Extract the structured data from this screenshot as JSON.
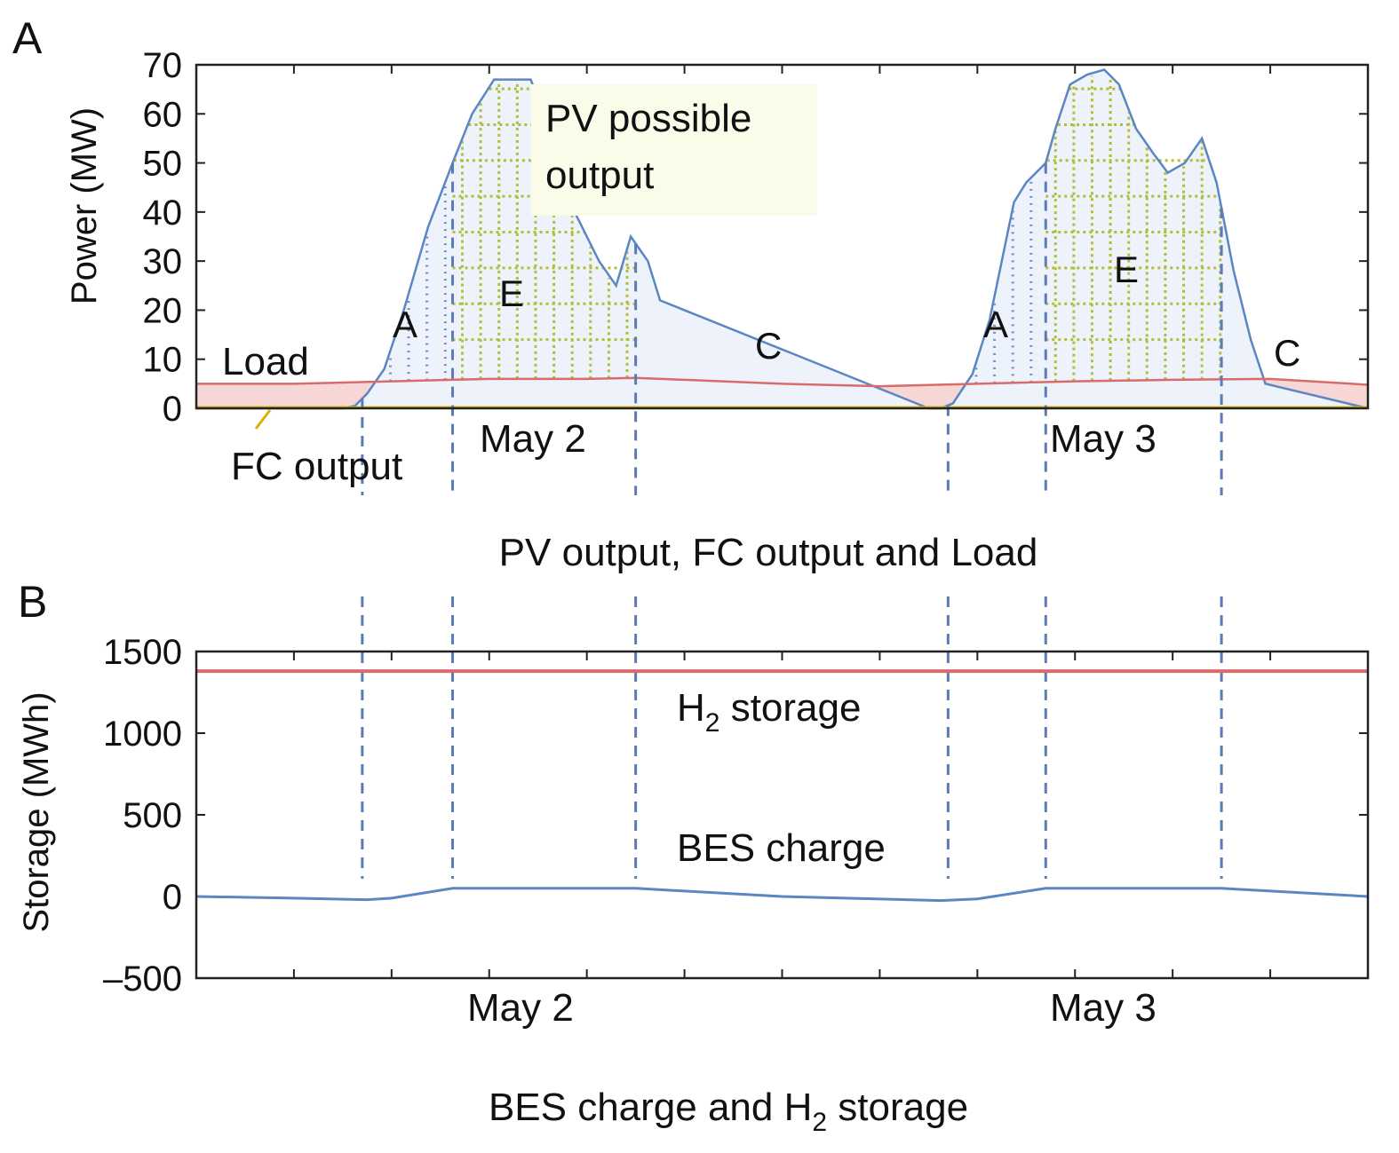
{
  "chart_data": [
    {
      "panel": "A",
      "type": "area",
      "caption": "PV output, FC output and Load",
      "ylabel": "Power (MW)",
      "ylim": [
        0,
        70
      ],
      "yticks": [
        0,
        10,
        20,
        30,
        40,
        50,
        60,
        70
      ],
      "xlim": [
        0,
        48
      ],
      "x_unit": "hours (May 1 12:00 to May 3 12:00)",
      "date_labels": [
        {
          "x": 14,
          "text": "May 2"
        },
        {
          "x": 38,
          "text": "May 3"
        }
      ],
      "series": [
        {
          "name": "PV possible output",
          "color": "#5b86c4",
          "x": [
            0,
            6.0,
            6.5,
            7.0,
            7.7,
            8.5,
            9.5,
            10.5,
            11.3,
            12.2,
            12.5,
            13.0,
            13.7,
            14.5,
            15.0,
            15.3,
            15.8,
            16.5,
            17.2,
            17.8,
            18.5,
            19.0,
            30.0,
            30.5,
            31.0,
            31.8,
            32.5,
            33.0,
            33.5,
            34.0,
            34.8,
            35.2,
            35.8,
            36.5,
            37.2,
            37.8,
            38.5,
            39.2,
            39.8,
            40.5,
            41.2,
            41.8,
            42.5,
            43.2,
            43.8,
            48
          ],
          "y": [
            0,
            0,
            0.5,
            3,
            8,
            20,
            37,
            50,
            60,
            67,
            67,
            67,
            67,
            57,
            48,
            42,
            37,
            30,
            25,
            35,
            30,
            22,
            0,
            0,
            1,
            7,
            18,
            30,
            42,
            46,
            50,
            57,
            66,
            68,
            69,
            66,
            57,
            52,
            48,
            50,
            55,
            46,
            28,
            14,
            5,
            0
          ]
        },
        {
          "name": "Load",
          "color": "#d96b6b",
          "x": [
            0,
            4,
            8,
            12,
            16,
            18,
            20,
            24,
            28,
            32,
            36,
            40,
            44,
            48
          ],
          "y": [
            5,
            5,
            5.5,
            6,
            6,
            6.2,
            5.8,
            5,
            4.5,
            5,
            5.5,
            5.8,
            6,
            4.8
          ]
        },
        {
          "name": "FC output",
          "color": "#d8b400",
          "x": [
            0,
            48
          ],
          "y": [
            0,
            0
          ]
        }
      ],
      "annotations": [
        "Load",
        "FC output",
        "PV possible output",
        "A",
        "E",
        "C",
        "A",
        "E",
        "C"
      ],
      "vertical_dashed_x": [
        6.8,
        10.5,
        18.0,
        30.8,
        34.8,
        42.0
      ]
    },
    {
      "panel": "B",
      "type": "line",
      "caption": "BES charge and H2 storage",
      "ylabel": "Storage (MWh)",
      "ylim": [
        -500,
        1500
      ],
      "yticks": [
        -500,
        0,
        500,
        1000,
        1500
      ],
      "xlim": [
        0,
        48
      ],
      "date_labels": [
        {
          "x": 14,
          "text": "May 2"
        },
        {
          "x": 38,
          "text": "May 3"
        }
      ],
      "series": [
        {
          "name": "H2 storage",
          "color": "#d96b6b",
          "x": [
            0,
            48
          ],
          "y": [
            1380,
            1380
          ]
        },
        {
          "name": "BES charge",
          "color": "#5b86c4",
          "x": [
            0,
            4,
            7,
            8,
            10.5,
            18,
            24,
            30.5,
            32,
            34.8,
            42,
            48
          ],
          "y": [
            0,
            -10,
            -20,
            -10,
            50,
            50,
            0,
            -25,
            -15,
            50,
            50,
            0
          ]
        }
      ],
      "annotations": [
        "H2 storage",
        "BES charge"
      ],
      "vertical_dashed_x": [
        6.8,
        10.5,
        18.0,
        30.8,
        34.8,
        42.0
      ]
    }
  ],
  "text": {
    "panelA_letter": "A",
    "panelB_letter": "B",
    "load_label": "Load",
    "fc_label": "FC output",
    "pv_label_line1": "PV possible",
    "pv_label_line2": "output",
    "regionA": "A",
    "regionE": "E",
    "regionC": "C",
    "h2_label_main": "H",
    "h2_label_sub": "2",
    "h2_label_rest": " storage",
    "bes_label": "BES charge",
    "captionA": "PV output, FC output and Load",
    "captionB_pre": "BES charge and H",
    "captionB_sub": "2",
    "captionB_post": " storage"
  }
}
